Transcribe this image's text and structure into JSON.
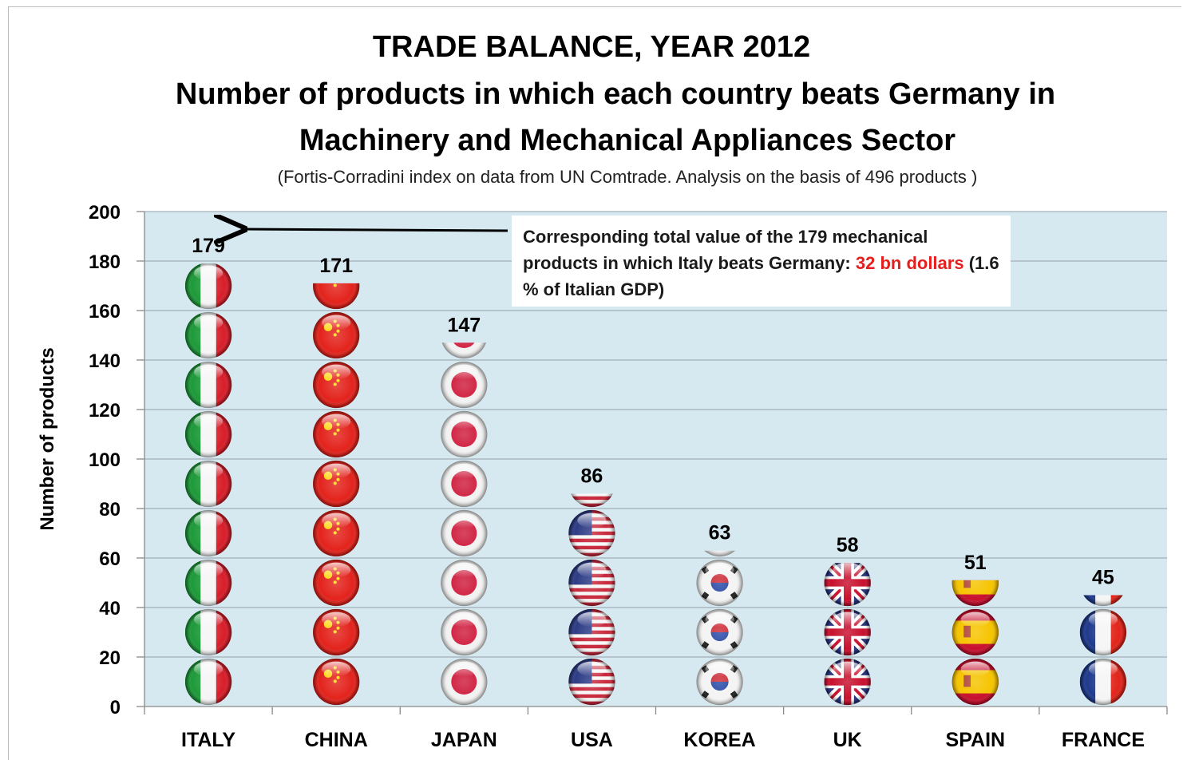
{
  "chart_data": {
    "type": "bar",
    "title": "TRADE BALANCE, YEAR 2012",
    "subtitle_line1": "Number of products in which each country beats Germany in",
    "subtitle_line2": "Machinery and Mechanical Appliances Sector",
    "note": "(Fortis-Corradini index on data from UN Comtrade. Analysis on the basis of 496 products )",
    "ylabel": "Number of products",
    "xlabel": "",
    "ylim": [
      0,
      200
    ],
    "yticks": [
      0,
      20,
      40,
      60,
      80,
      100,
      120,
      140,
      160,
      180,
      200
    ],
    "categories": [
      "ITALY",
      "CHINA",
      "JAPAN",
      "USA",
      "KOREA",
      "UK",
      "SPAIN",
      "FRANCE"
    ],
    "values": [
      179,
      171,
      147,
      86,
      63,
      58,
      51,
      45
    ],
    "grid": true,
    "marker_style": "stacked flag spheres",
    "flags": [
      "italy-flag",
      "china-flag",
      "japan-flag",
      "usa-flag",
      "korea-flag",
      "uk-flag",
      "spain-flag",
      "france-flag"
    ],
    "plot_background": "#d6e9f1",
    "annotation": {
      "points_to": "ITALY",
      "text_before": "Corresponding total value of the 179 mechanical products in which Italy beats Germany: ",
      "highlight": "32 bn dollars",
      "text_after": " (1.6 % of Italian GDP)",
      "highlight_color": "#e4201f"
    }
  }
}
